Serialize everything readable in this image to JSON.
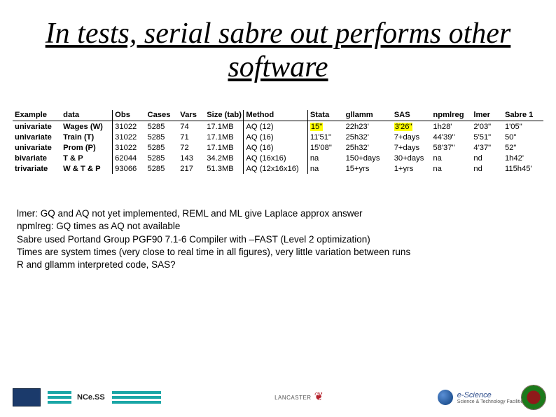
{
  "title": "In tests, serial sabre out performs other software",
  "table": {
    "headers": [
      "Example",
      "data",
      "Obs",
      "Cases",
      "Vars",
      "Size (tab)",
      "Method",
      "Stata",
      "gllamm",
      "SAS",
      "npmlreg",
      "lmer",
      "Sabre 1"
    ],
    "rows": [
      {
        "example": "univariate",
        "data": "Wages (W)",
        "obs": "31022",
        "cases": "5285",
        "vars": "74",
        "size": "17.1MB",
        "method": "AQ (12)",
        "stata": "15\"",
        "gllamm": "22h23'",
        "sas": "3'26\"",
        "npml": "1h28'",
        "lmer": "2'03\"",
        "sabre": "1'05\"",
        "stata_hl": true,
        "sas_hl": true
      },
      {
        "example": "univariate",
        "data": "Train (T)",
        "obs": "31022",
        "cases": "5285",
        "vars": "71",
        "size": "17.1MB",
        "method": "AQ (16)",
        "stata": "11'51\"",
        "gllamm": "25h32'",
        "sas": "7+days",
        "npml": "44'39\"",
        "lmer": "5'51\"",
        "sabre": "50\""
      },
      {
        "example": "univariate",
        "data": "Prom (P)",
        "obs": "31022",
        "cases": "5285",
        "vars": "72",
        "size": "17.1MB",
        "method": "AQ (16)",
        "stata": "15'08\"",
        "gllamm": "25h32'",
        "sas": "7+days",
        "npml": "58'37\"",
        "lmer": "4'37\"",
        "sabre": "52\""
      },
      {
        "example": "bivariate",
        "data": "T & P",
        "obs": "62044",
        "cases": "5285",
        "vars": "143",
        "size": "34.2MB",
        "method": "AQ (16x16)",
        "stata": "na",
        "gllamm": "150+days",
        "sas": "30+days",
        "npml": "na",
        "lmer": "nd",
        "sabre": "1h42'"
      },
      {
        "example": "trivariate",
        "data": "W & T & P",
        "obs": "93066",
        "cases": "5285",
        "vars": "217",
        "size": "51.3MB",
        "method": "AQ (12x16x16)",
        "stata": "na",
        "gllamm": "15+yrs",
        "sas": "1+yrs",
        "npml": "na",
        "lmer": "nd",
        "sabre": "115h45'"
      }
    ]
  },
  "notes": [
    "lmer: GQ and AQ not yet implemented, REML and ML give Laplace approx answer",
    "npmlreg: GQ times as AQ not available",
    "Sabre used Portand Group PGF90 7.1-6 Compiler with –FAST (Level 2 optimization)",
    "Times are system times (very close to real time in all figures), very little variation between runs",
    "R and gllamm interpreted code, SAS?"
  ],
  "footer": {
    "ncess": "NCe.SS",
    "lancaster": "LANCASTER",
    "escience": "e-Science",
    "stfc": "Science & Technology Facilities Council"
  }
}
